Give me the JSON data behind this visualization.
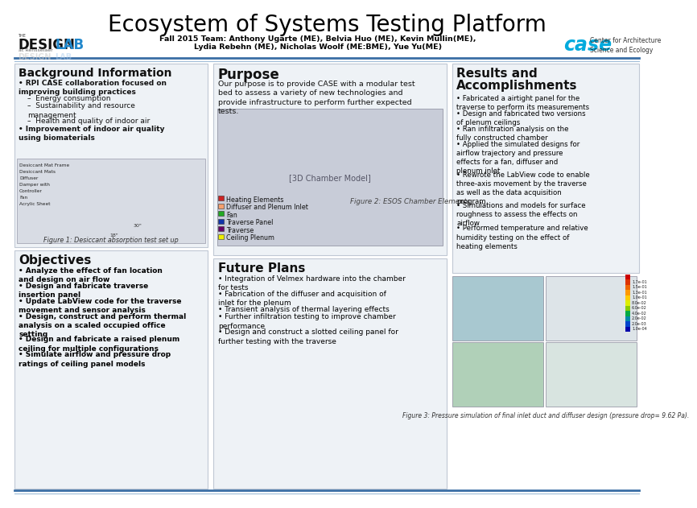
{
  "title": "Ecosystem of Systems Testing Platform",
  "title_fontsize": 20,
  "team_line1": "Fall 2015 Team: Anthony Ugarte (ME), Belvia Huo (ME), Kevin Mullin(ME),",
  "team_line2": "Lydia Rebehn (ME), Nicholas Woolf (ME:BME), Yue Yu(ME)",
  "bg_color": "#ffffff",
  "panel_bg": "#eef2f6",
  "separator_color_dark": "#3a6ea5",
  "separator_color_light": "#a0bcd8",
  "background_title": "Background Information",
  "bg_bullet1": "RPI CASE collaboration focused on improving building practices",
  "bg_sub1": "Energy consumption",
  "bg_sub2": "Sustainability and resource management",
  "bg_sub3": "Health and quality of indoor air",
  "bg_bullet2": "Improvement of indoor air quality using biomaterials",
  "fig1_caption": "Figure 1: Desiccant absorption test set up",
  "fig1_labels": [
    "Desiccant Mat Frame",
    "Desiccant Mats",
    "Diffuser",
    "Damper with",
    "Controller",
    "Fan",
    "Acrylic Sheet"
  ],
  "objectives_title": "Objectives",
  "objectives_bullets": [
    "Analyze the effect of fan location and design on air flow",
    "Design and fabricate traverse insertion panel",
    "Update LabView code for the traverse movement and sensor analysis",
    "Design, construct and  perform thermal analysis on a scaled occupied office setting",
    "Design and fabricate a raised plenum ceiling for multiple configurations",
    "Simulate airflow and pressure drop ratings of ceiling panel models"
  ],
  "purpose_title": "Purpose",
  "purpose_text": "Our purpose is to provide CASE with a modular test bed to assess a variety of new technologies and provide infrastructure to perform further expected tests.",
  "legend_items": [
    {
      "color": "#cc2222",
      "label": "Heating Elements"
    },
    {
      "color": "#f5a06e",
      "label": "Diffuser and Plenum Inlet"
    },
    {
      "color": "#22aa22",
      "label": "Fan"
    },
    {
      "color": "#1133aa",
      "label": "Traverse Panel"
    },
    {
      "color": "#660066",
      "label": "Traverse"
    },
    {
      "color": "#eeee00",
      "label": "Ceiling Plenum"
    }
  ],
  "fig2_caption": "Figure 2: ESOS Chamber Elements",
  "future_title": "Future Plans",
  "future_bullets": [
    "Integration of Velmex hardware into the chamber for tests",
    "Fabrication of the diffuser and acquisition of inlet for the plenum",
    "Transient analysis of thermal layering effects",
    "Further infiltration testing to improve chamber performance",
    "Design and construct a slotted ceiling panel for further testing with the traverse"
  ],
  "results_title": "Results and\nAccomplishments",
  "results_bullets": [
    "Fabricated a airtight panel for the traverse to perform its measurements",
    "Design and fabricated two versions of plenum ceilings",
    "Ran infiltration analysis on the fully constructed chamber",
    "Applied the simulated designs for airflow trajectory and pressure effects for a fan, diffuser and plenum inlet",
    "Rewrote the LabView code to enable three-axis movement by the traverse as well as the data acquisition program",
    "Simulations and models for surface roughness to assess the effects on airflow",
    "Performed temperature and relative humidity testing on the effect of heating elements"
  ],
  "fig3_caption": "Figure 3: Pressure simulation of final inlet duct and diffuser design (pressure drop= 9.62 Pa).",
  "case_logo_color": "#00aadd",
  "case_text": "Center for Architecture\nScience and Ecology"
}
